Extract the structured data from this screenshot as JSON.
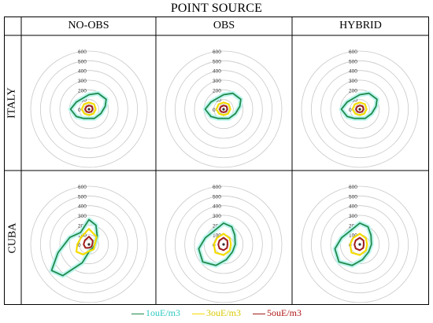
{
  "title": "POINT SOURCE",
  "columns": [
    "NO-OBS",
    "OBS",
    "HYBRID"
  ],
  "rows": [
    "ITALY",
    "CUBA"
  ],
  "radial_ticks": [
    "600",
    "500",
    "400",
    "300",
    "200",
    "100",
    "0"
  ],
  "radial_max": 600,
  "colors": {
    "c1": "#1f8a4c",
    "c3": "#f4dc00",
    "c5": "#a01c1c",
    "shade": "#bff5ee",
    "ring": "#c8c8c8"
  },
  "legend": [
    {
      "label": "1ouE/m3",
      "color": "#1f8a4c",
      "text_color": "#2fc9c0"
    },
    {
      "label": "3ouE/m3",
      "color": "#f4dc00",
      "text_color": "#d8c900"
    },
    {
      "label": "5ouE/m3",
      "color": "#a01c1c",
      "text_color": "#b01818"
    }
  ]
}
